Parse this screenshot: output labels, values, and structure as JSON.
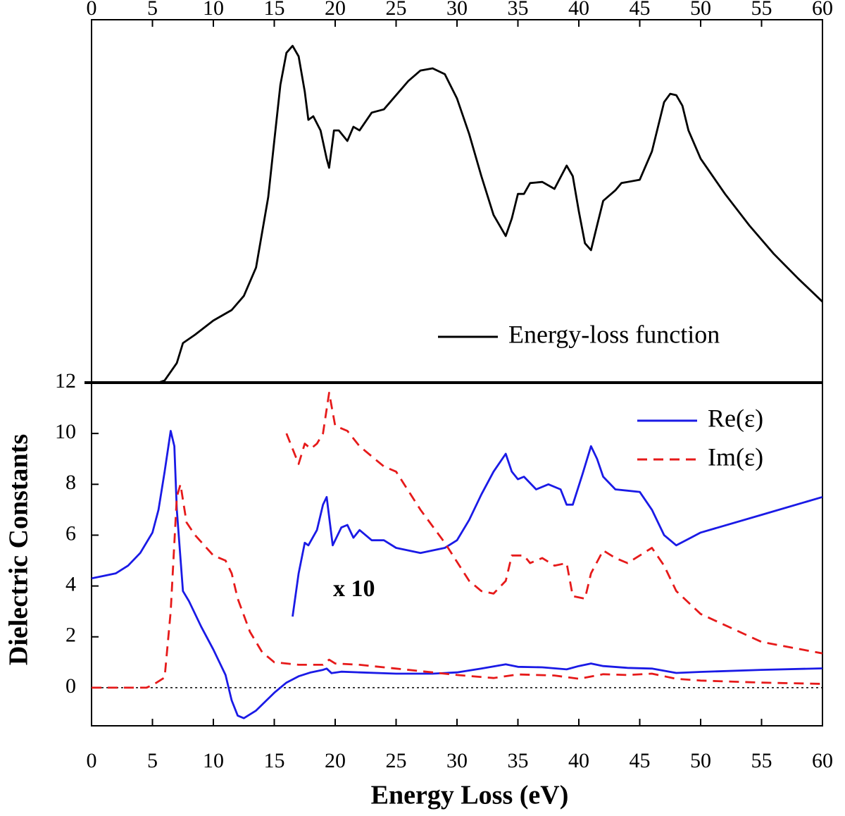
{
  "chart_data": [
    {
      "type": "line",
      "xlim": [
        0,
        60
      ],
      "xticks": [
        0,
        5,
        10,
        15,
        20,
        25,
        30,
        35,
        40,
        45,
        50,
        55,
        60
      ],
      "ylim": [
        0,
        1
      ],
      "legend": "lower right",
      "series": [
        {
          "name": "Energy-loss function",
          "color": "#000000",
          "dash": "solid",
          "x": [
            5.5,
            6,
            7,
            7.5,
            8.5,
            10,
            11.5,
            12.5,
            13.5,
            14.5,
            15,
            15.5,
            16,
            16.5,
            17,
            17.5,
            17.8,
            18.2,
            18.8,
            19.3,
            19.5,
            19.9,
            20.3,
            21,
            21.5,
            22,
            23,
            24,
            25,
            26,
            27,
            28,
            29,
            30,
            31,
            32,
            33,
            34,
            34.5,
            35,
            35.5,
            36,
            37,
            38,
            39,
            39.5,
            40,
            40.5,
            41,
            41.5,
            42,
            43,
            43.5,
            45,
            46,
            47,
            47.5,
            48,
            48.5,
            49,
            50,
            52,
            54,
            56,
            58,
            60
          ],
          "values": [
            0,
            0.006,
            0.054,
            0.109,
            0.132,
            0.171,
            0.2,
            0.239,
            0.317,
            0.511,
            0.666,
            0.821,
            0.909,
            0.928,
            0.899,
            0.802,
            0.724,
            0.734,
            0.695,
            0.617,
            0.592,
            0.695,
            0.695,
            0.666,
            0.705,
            0.695,
            0.744,
            0.753,
            0.792,
            0.831,
            0.86,
            0.866,
            0.85,
            0.783,
            0.685,
            0.569,
            0.462,
            0.404,
            0.452,
            0.52,
            0.52,
            0.55,
            0.553,
            0.534,
            0.598,
            0.569,
            0.472,
            0.384,
            0.365,
            0.433,
            0.501,
            0.53,
            0.55,
            0.559,
            0.637,
            0.773,
            0.796,
            0.792,
            0.763,
            0.695,
            0.617,
            0.52,
            0.433,
            0.355,
            0.287,
            0.223
          ]
        }
      ]
    },
    {
      "type": "line",
      "xlabel": "Energy Loss (eV)",
      "ylabel": "Dielectric Constants",
      "xlim": [
        0,
        60
      ],
      "xticks": [
        0,
        5,
        10,
        15,
        20,
        25,
        30,
        35,
        40,
        45,
        50,
        55,
        60
      ],
      "ylim": [
        -1.5,
        12
      ],
      "yticks": [
        0,
        2,
        4,
        6,
        8,
        10,
        12
      ],
      "hline": 0,
      "legend": "upper right",
      "annotation": "x 10",
      "series": [
        {
          "name": "Re(ε)",
          "color": "#1a1ae6",
          "dash": "solid",
          "x": [
            0,
            1,
            2,
            3,
            4,
            5,
            5.5,
            6,
            6.5,
            6.8,
            7,
            7.5,
            8,
            9,
            10,
            11,
            11.5,
            12,
            12.5,
            13.5,
            15,
            16,
            17,
            18,
            19,
            19.3,
            19.7,
            20.5,
            22,
            25,
            28,
            30,
            32,
            34,
            35,
            37,
            39,
            40,
            41,
            42,
            44,
            46,
            48,
            50,
            55,
            60
          ],
          "values": [
            4.3,
            4.4,
            4.5,
            4.8,
            5.3,
            6.1,
            7,
            8.5,
            10.1,
            9.5,
            7,
            3.8,
            3.4,
            2.4,
            1.5,
            0.5,
            -0.5,
            -1.1,
            -1.2,
            -0.9,
            -0.2,
            0.2,
            0.45,
            0.6,
            0.7,
            0.75,
            0.57,
            0.63,
            0.6,
            0.55,
            0.55,
            0.6,
            0.75,
            0.92,
            0.82,
            0.8,
            0.72,
            0.85,
            0.95,
            0.85,
            0.78,
            0.75,
            0.58,
            0.62,
            0.7,
            0.76
          ]
        },
        {
          "name": "Im(ε)",
          "color": "#e61a1a",
          "dash": "dashed",
          "x": [
            0,
            4.5,
            5,
            6,
            6.5,
            7,
            7.3,
            7.8,
            8.5,
            10,
            11,
            11.5,
            12,
            13,
            14,
            15,
            17,
            19,
            19.5,
            20,
            22,
            25,
            28,
            30,
            33,
            35,
            38,
            40,
            42,
            44,
            46,
            48,
            50,
            55,
            60
          ],
          "values": [
            0,
            0,
            0.1,
            0.4,
            3,
            7.5,
            8,
            6.5,
            6,
            5.2,
            5,
            4.5,
            3.5,
            2.2,
            1.4,
            1,
            0.9,
            0.9,
            1.1,
            0.95,
            0.9,
            0.75,
            0.6,
            0.5,
            0.38,
            0.52,
            0.48,
            0.35,
            0.53,
            0.5,
            0.55,
            0.35,
            0.28,
            0.2,
            0.15
          ]
        },
        {
          "color": "#1a1ae6",
          "dash": "solid",
          "x": [
            16.5,
            17,
            17.5,
            17.8,
            18.5,
            19,
            19.3,
            19.8,
            20.5,
            21,
            21.5,
            22,
            23,
            24,
            25,
            27,
            29,
            30,
            31,
            32,
            33,
            34,
            34.5,
            35,
            35.5,
            36.5,
            37.5,
            38.5,
            39,
            39.5,
            40.3,
            41,
            41.5,
            42,
            43,
            45,
            46,
            47,
            48,
            50,
            55,
            60
          ],
          "values": [
            2.8,
            4.5,
            5.7,
            5.6,
            6.2,
            7.2,
            7.5,
            5.6,
            6.3,
            6.4,
            5.9,
            6.2,
            5.8,
            5.8,
            5.5,
            5.3,
            5.5,
            5.8,
            6.6,
            7.6,
            8.5,
            9.2,
            8.5,
            8.2,
            8.3,
            7.8,
            8,
            7.8,
            7.2,
            7.2,
            8.4,
            9.5,
            9,
            8.3,
            7.8,
            7.7,
            7,
            6,
            5.6,
            6.1,
            6.8,
            7.5
          ]
        },
        {
          "color": "#e61a1a",
          "dash": "dashed",
          "x": [
            16,
            17,
            17.5,
            18,
            18.5,
            19,
            19.5,
            20,
            21,
            22,
            24,
            25,
            27,
            29,
            31,
            32,
            33,
            34,
            34.5,
            35.5,
            36,
            37,
            38,
            39,
            39.5,
            40.5,
            41,
            42,
            43,
            44,
            45,
            46,
            47,
            48,
            50,
            55,
            60
          ],
          "values": [
            10,
            8.8,
            9.6,
            9.4,
            9.6,
            10,
            11.6,
            10.3,
            10.1,
            9.5,
            8.7,
            8.5,
            7,
            5.7,
            4.2,
            3.8,
            3.7,
            4.2,
            5.2,
            5.2,
            4.9,
            5.1,
            4.8,
            4.9,
            3.6,
            3.5,
            4.5,
            5.4,
            5.1,
            4.9,
            5.2,
            5.5,
            4.8,
            3.8,
            2.9,
            1.8,
            1.35
          ]
        }
      ]
    }
  ]
}
